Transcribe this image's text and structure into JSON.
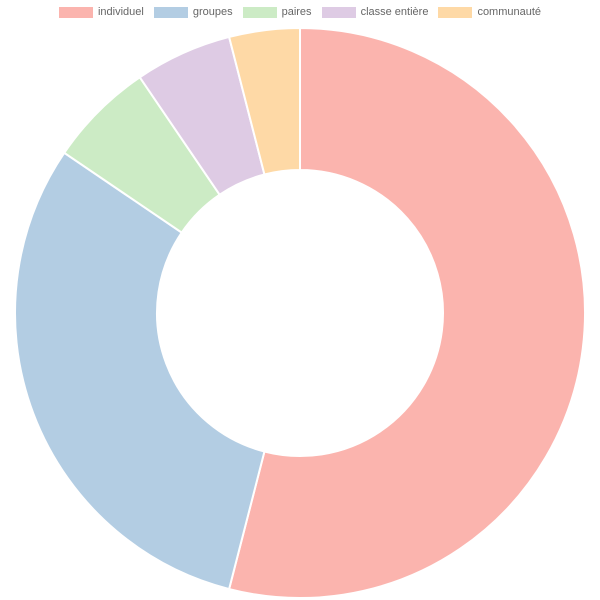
{
  "chart_data": {
    "type": "pie",
    "donut": true,
    "title": "",
    "legend_position": "top",
    "categories": [
      "individuel",
      "groupes",
      "paires",
      "classe entière",
      "communauté"
    ],
    "values": [
      54,
      30.5,
      6,
      5.5,
      4
    ],
    "colors": [
      "#fbb4ae",
      "#b3cde3",
      "#ccebc5",
      "#decbe4",
      "#fed9a6"
    ]
  }
}
